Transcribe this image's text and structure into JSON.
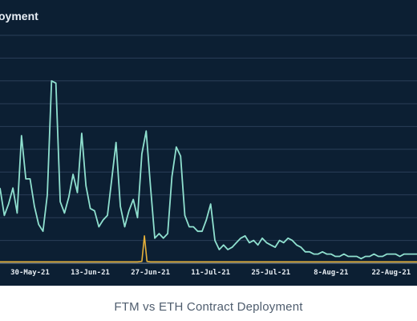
{
  "chart_title": "oyment",
  "caption": "FTM vs ETH Contract Deployment",
  "colors": {
    "background": "#0c1f33",
    "grid": "#2a3f58",
    "series_main": "#8fe0cf",
    "series_secondary": "#e6b13a",
    "baseline": "#7f8c99"
  },
  "chart_data": {
    "type": "line",
    "x_tick_labels": [
      "30-May-21",
      "13-Jun-21",
      "27-Jun-21",
      "11-Jul-21",
      "25-Jul-21",
      "8-Aug-21",
      "22-Aug-21"
    ],
    "x_tick_days": [
      7,
      21,
      35,
      49,
      63,
      77,
      91
    ],
    "x_range_days": [
      0,
      97
    ],
    "y_range": [
      0,
      100
    ],
    "grid": "horizontal",
    "gridline_count": 10,
    "series": [
      {
        "color_key": "series_main",
        "x_days": [
          0,
          1,
          2,
          3,
          4,
          5,
          6,
          7,
          8,
          9,
          10,
          11,
          12,
          13,
          14,
          15,
          16,
          17,
          18,
          19,
          20,
          21,
          22,
          23,
          24,
          25,
          26,
          27,
          28,
          29,
          30,
          31,
          32,
          33,
          34,
          35,
          36,
          37,
          38,
          39,
          40,
          41,
          42,
          43,
          44,
          45,
          46,
          47,
          48,
          49,
          50,
          51,
          52,
          53,
          54,
          55,
          56,
          57,
          58,
          59,
          60,
          61,
          62,
          63,
          64,
          65,
          66,
          67,
          68,
          69,
          70,
          71,
          72,
          73,
          74,
          75,
          76,
          77,
          78,
          79,
          80,
          81,
          82,
          83,
          84,
          85,
          86,
          87,
          88,
          89,
          90,
          91,
          92,
          93,
          94,
          95,
          96,
          97
        ],
        "values": [
          33,
          21,
          26,
          33,
          22,
          56,
          37,
          37,
          25,
          17,
          14,
          30,
          80,
          79,
          27,
          22,
          29,
          39,
          31,
          57,
          34,
          24,
          23,
          16,
          19,
          21,
          37,
          53,
          25,
          16,
          23,
          28,
          20,
          48,
          58,
          34,
          11,
          13,
          11,
          13,
          38,
          51,
          47,
          21,
          16,
          16,
          14,
          14,
          19,
          26,
          10,
          6,
          8,
          6,
          7,
          9,
          11,
          12,
          9,
          10,
          8,
          11,
          9,
          8,
          7,
          10,
          9,
          11,
          10,
          8,
          7,
          5,
          5,
          4,
          4,
          5,
          4,
          4,
          3,
          3,
          4,
          3,
          3,
          3,
          2,
          3,
          3,
          4,
          3,
          3,
          4,
          4,
          4,
          3,
          4,
          4,
          4,
          4
        ]
      },
      {
        "color_key": "series_secondary",
        "x_days": [
          0,
          32,
          33,
          33.6,
          34.2,
          35,
          97
        ],
        "values": [
          0.6,
          0.6,
          0.8,
          12,
          0.8,
          0.6,
          0.6
        ]
      }
    ]
  }
}
